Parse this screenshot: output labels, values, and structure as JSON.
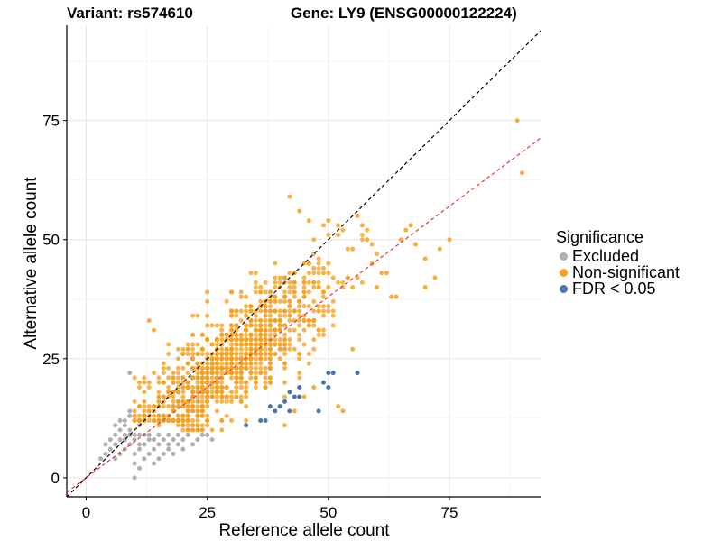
{
  "chart_data": {
    "type": "scatter",
    "title_left": "Variant: rs574610",
    "title_right": "Gene: LY9 (ENSG00000122224)",
    "xlabel": "Reference allele count",
    "ylabel": "Alternative allele count",
    "xlim": [
      -4,
      94
    ],
    "ylim": [
      -4,
      95
    ],
    "xticks": [
      0,
      25,
      50,
      75
    ],
    "yticks": [
      0,
      25,
      50,
      75
    ],
    "grid": true,
    "legend": {
      "title": "Significance",
      "placement": "right",
      "items": [
        {
          "label": "Excluded",
          "color": "#b0b0b0"
        },
        {
          "label": "Non-significant",
          "color": "#f5a020"
        },
        {
          "label": "FDR < 0.05",
          "color": "#4a77a8"
        }
      ]
    },
    "reference_lines": [
      {
        "name": "identity",
        "slope": 1,
        "intercept": 0,
        "color": "#000000",
        "dash": true
      },
      {
        "name": "fit",
        "slope": 0.76,
        "intercept": 0,
        "color": "#e8382f",
        "dash": true
      }
    ],
    "series": [
      {
        "group": "Excluded",
        "color": "#b0b0b0",
        "points": [
          [
            3,
            4
          ],
          [
            4,
            5
          ],
          [
            4,
            7
          ],
          [
            5,
            6
          ],
          [
            5,
            8
          ],
          [
            6,
            4
          ],
          [
            6,
            7
          ],
          [
            6,
            9
          ],
          [
            6,
            11
          ],
          [
            7,
            5
          ],
          [
            7,
            8
          ],
          [
            7,
            10
          ],
          [
            8,
            6
          ],
          [
            8,
            8
          ],
          [
            8,
            9
          ],
          [
            8,
            12
          ],
          [
            9,
            7
          ],
          [
            9,
            9
          ],
          [
            9,
            10
          ],
          [
            9,
            13
          ],
          [
            9,
            22
          ],
          [
            10,
            0
          ],
          [
            10,
            3
          ],
          [
            10,
            5
          ],
          [
            10,
            8
          ],
          [
            10,
            9
          ],
          [
            11,
            2
          ],
          [
            11,
            6
          ],
          [
            11,
            7
          ],
          [
            11,
            9
          ],
          [
            11,
            11
          ],
          [
            12,
            4
          ],
          [
            12,
            7
          ],
          [
            12,
            9
          ],
          [
            12,
            12
          ],
          [
            13,
            5
          ],
          [
            13,
            8
          ],
          [
            13,
            9
          ],
          [
            14,
            3
          ],
          [
            14,
            6
          ],
          [
            14,
            8
          ],
          [
            15,
            4
          ],
          [
            15,
            7
          ],
          [
            15,
            9
          ],
          [
            16,
            5
          ],
          [
            16,
            8
          ],
          [
            17,
            6
          ],
          [
            17,
            7
          ],
          [
            17,
            9
          ],
          [
            18,
            5
          ],
          [
            18,
            8
          ],
          [
            19,
            7
          ],
          [
            19,
            9
          ],
          [
            20,
            6
          ],
          [
            20,
            8
          ],
          [
            21,
            9
          ],
          [
            22,
            7
          ],
          [
            23,
            8
          ],
          [
            24,
            9
          ],
          [
            25,
            9
          ],
          [
            26,
            8
          ],
          [
            9,
            14
          ],
          [
            8,
            11
          ],
          [
            7,
            12
          ]
        ]
      },
      {
        "group": "Non-significant",
        "color": "#f5a020",
        "seed": 7,
        "n": 1150,
        "points": [
          [
            89,
            75
          ],
          [
            90,
            64
          ],
          [
            75,
            50
          ],
          [
            73,
            48
          ],
          [
            72,
            42
          ],
          [
            70,
            46
          ],
          [
            68,
            49
          ],
          [
            67,
            53
          ],
          [
            66,
            52
          ],
          [
            65,
            50
          ],
          [
            63,
            38
          ],
          [
            62,
            43
          ],
          [
            60,
            40
          ],
          [
            59,
            45
          ],
          [
            58,
            50
          ],
          [
            57,
            53
          ],
          [
            56,
            55
          ],
          [
            55,
            48
          ],
          [
            54,
            42
          ],
          [
            42,
            59
          ],
          [
            44,
            56
          ],
          [
            46,
            54
          ],
          [
            50,
            54
          ],
          [
            52,
            51
          ],
          [
            61,
            43
          ],
          [
            64,
            38
          ],
          [
            70,
            40
          ],
          [
            10,
            14
          ],
          [
            11,
            15
          ],
          [
            12,
            16
          ],
          [
            13,
            33
          ],
          [
            14,
            31
          ],
          [
            12,
            14
          ],
          [
            13,
            13
          ],
          [
            14,
            12
          ],
          [
            15,
            11
          ],
          [
            16,
            12
          ],
          [
            17,
            13
          ],
          [
            19,
            11
          ],
          [
            21,
            10
          ],
          [
            23,
            10
          ],
          [
            41,
            11
          ],
          [
            43,
            14
          ],
          [
            45,
            17
          ],
          [
            47,
            19
          ],
          [
            52,
            15
          ],
          [
            53,
            14
          ],
          [
            55,
            27
          ]
        ]
      },
      {
        "group": "FDR < 0.05",
        "color": "#4a77a8",
        "points": [
          [
            33,
            11
          ],
          [
            36,
            12
          ],
          [
            37,
            12
          ],
          [
            38,
            15
          ],
          [
            39,
            14
          ],
          [
            40,
            15
          ],
          [
            41,
            16
          ],
          [
            42,
            14
          ],
          [
            43,
            17
          ],
          [
            44,
            17
          ],
          [
            48,
            14
          ],
          [
            49,
            20
          ],
          [
            50,
            22
          ],
          [
            50,
            19
          ],
          [
            51,
            22
          ],
          [
            56,
            22
          ],
          [
            44,
            19
          ],
          [
            42,
            18
          ]
        ]
      }
    ]
  }
}
